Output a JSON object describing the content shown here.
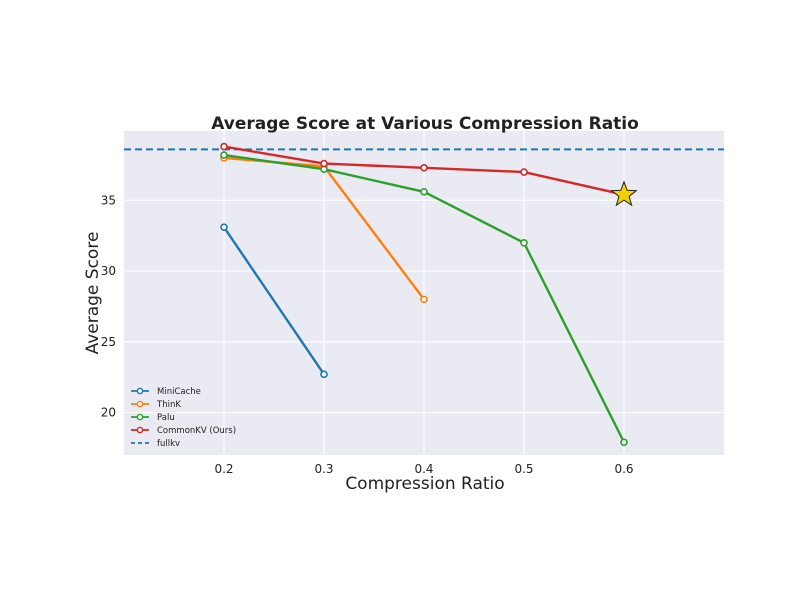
{
  "chart_data": {
    "type": "line",
    "title": "Average Score at Various Compression Ratio",
    "xlabel": "Compression Ratio",
    "ylabel": "Average Score",
    "xlim": [
      0.1,
      0.7
    ],
    "ylim": [
      17,
      39.9
    ],
    "xticks": [
      0.2,
      0.3,
      0.4,
      0.5,
      0.6
    ],
    "xtick_labels": [
      "0.2",
      "0.3",
      "0.4",
      "0.5",
      "0.6"
    ],
    "yticks": [
      20,
      25,
      30,
      35
    ],
    "ytick_labels": [
      "20",
      "25",
      "30",
      "35"
    ],
    "grid": true,
    "legend_position": "lower-left",
    "series": [
      {
        "name": "MiniCache",
        "color": "#1f77b4",
        "x": [
          0.2,
          0.3
        ],
        "y": [
          33.1,
          22.7
        ]
      },
      {
        "name": "ThinK",
        "color": "#ff7f0e",
        "x": [
          0.2,
          0.3,
          0.4
        ],
        "y": [
          38.0,
          37.4,
          28.0
        ]
      },
      {
        "name": "Palu",
        "color": "#2ca02c",
        "x": [
          0.2,
          0.3,
          0.4,
          0.5,
          0.6
        ],
        "y": [
          38.2,
          37.2,
          35.6,
          32.0,
          17.9
        ]
      },
      {
        "name": "CommonKV (Ours)",
        "color": "#d62728",
        "x": [
          0.2,
          0.3,
          0.4,
          0.5,
          0.6
        ],
        "y": [
          38.8,
          37.6,
          37.3,
          37.0,
          35.4
        ]
      }
    ],
    "reference_line": {
      "name": "fullkv",
      "color": "#1f77b4",
      "y": 38.6,
      "style": "dashed"
    },
    "annotations": [
      {
        "type": "star-marker",
        "x": 0.6,
        "y": 35.4,
        "color": "#f5d000"
      }
    ]
  }
}
